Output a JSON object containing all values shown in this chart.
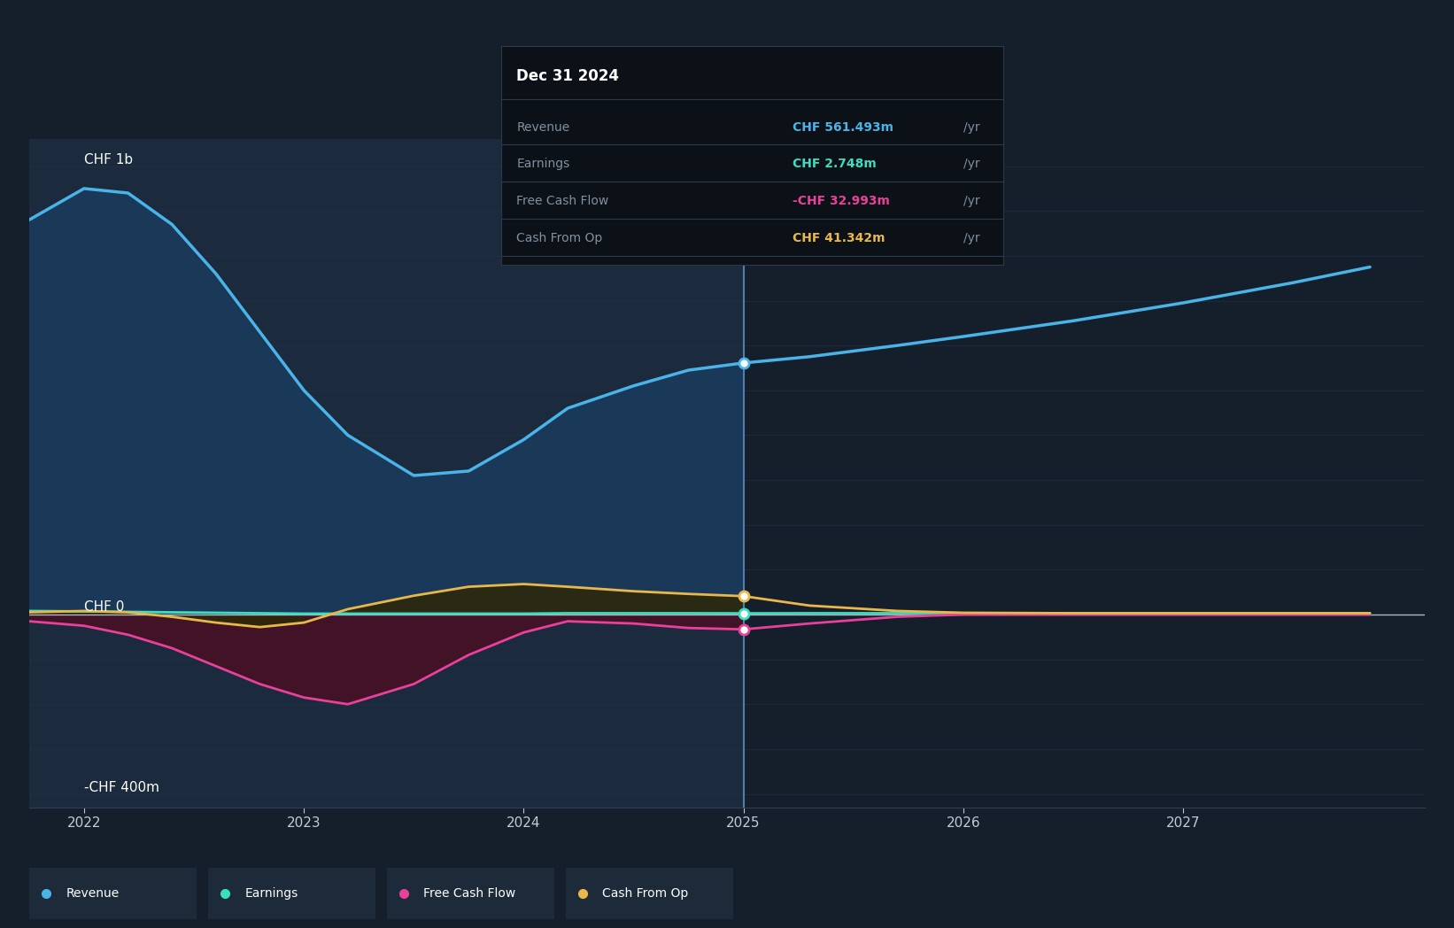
{
  "bg_color": "#151e2b",
  "past_shade_color": "#1b2a3d",
  "grid_color": "#253347",
  "zero_line_color": "#b0b8c8",
  "revenue_color": "#4ab3e8",
  "earnings_color": "#3dddc0",
  "fcf_color": "#e8419a",
  "cashop_color": "#e8b84a",
  "revenue_fill": "#1a3a5c",
  "fcf_fill": "#4a0f22",
  "cashop_fill": "#2e2810",
  "x_past": [
    2021.75,
    2022.0,
    2022.2,
    2022.4,
    2022.6,
    2022.8,
    2023.0,
    2023.2,
    2023.5,
    2023.75,
    2024.0,
    2024.2,
    2024.5,
    2024.75,
    2025.0
  ],
  "x_forecast": [
    2025.0,
    2025.3,
    2025.7,
    2026.0,
    2026.5,
    2027.0,
    2027.5,
    2027.85
  ],
  "revenue_past": [
    880,
    950,
    940,
    870,
    760,
    630,
    500,
    400,
    310,
    320,
    390,
    460,
    510,
    545,
    561
  ],
  "revenue_forecast": [
    561,
    575,
    600,
    620,
    655,
    695,
    740,
    775
  ],
  "earnings_past": [
    8,
    7,
    6,
    5,
    4,
    3,
    2,
    2,
    2,
    2,
    2,
    3,
    3,
    3,
    2.748
  ],
  "earnings_forecast": [
    2.748,
    3,
    3,
    3,
    3,
    3,
    3,
    3
  ],
  "fcf_past": [
    -15,
    -25,
    -45,
    -75,
    -115,
    -155,
    -185,
    -200,
    -155,
    -90,
    -40,
    -15,
    -20,
    -30,
    -33
  ],
  "fcf_forecast": [
    -33,
    -20,
    -5,
    0,
    0,
    0,
    0,
    0
  ],
  "cashop_past": [
    5,
    8,
    5,
    -5,
    -18,
    -28,
    -18,
    12,
    42,
    62,
    68,
    62,
    52,
    46,
    41
  ],
  "cashop_forecast": [
    41,
    20,
    8,
    4,
    3,
    3,
    3,
    3
  ],
  "ylim_min": -430,
  "ylim_max": 1060,
  "xlim_min": 2021.75,
  "xlim_max": 2028.1,
  "past_end_x": 2025.0,
  "dot_rev_y": 561,
  "dot_earn_y": 2.748,
  "dot_cashop_y": 41,
  "dot_fcf_y": -33,
  "tooltip_date": "Dec 31 2024",
  "tooltip_rows": [
    {
      "label": "Revenue",
      "value": "CHF 561.493m",
      "unit": " /yr",
      "color": "#4ab3e8"
    },
    {
      "label": "Earnings",
      "value": "CHF 2.748m",
      "unit": " /yr",
      "color": "#3dddc0"
    },
    {
      "label": "Free Cash Flow",
      "value": "-CHF 32.993m",
      "unit": " /yr",
      "color": "#e8419a"
    },
    {
      "label": "Cash From Op",
      "value": "CHF 41.342m",
      "unit": " /yr",
      "color": "#e8b84a"
    }
  ],
  "xticks": [
    2022,
    2023,
    2024,
    2025,
    2026,
    2027
  ],
  "ylabel_1b_x": 2022.0,
  "ylabel_0_x": 2022.0,
  "ylabel_m400_x": 2022.0,
  "legend_items": [
    "Revenue",
    "Earnings",
    "Free Cash Flow",
    "Cash From Op"
  ],
  "legend_colors": [
    "#4ab3e8",
    "#3dddc0",
    "#e8419a",
    "#e8b84a"
  ]
}
